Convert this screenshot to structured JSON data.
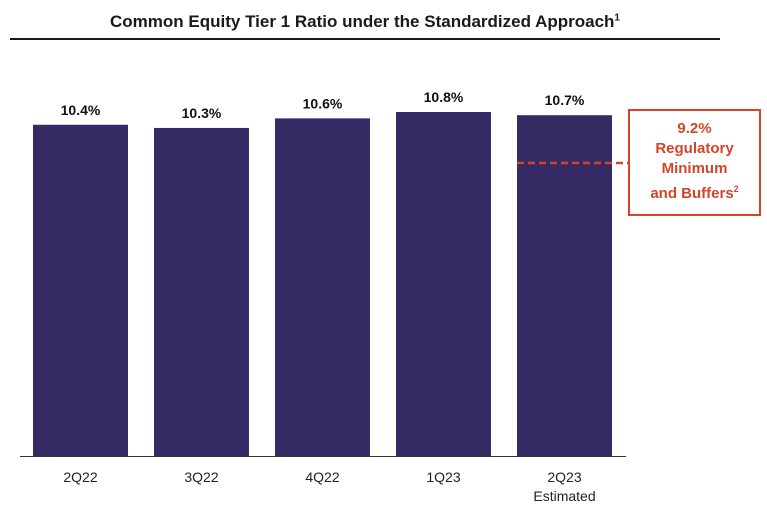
{
  "chart_data": {
    "type": "bar",
    "title": "Common Equity Tier 1 Ratio under the Standardized Approach",
    "title_footnote": "1",
    "categories": [
      {
        "label": "2Q22",
        "sublabel": ""
      },
      {
        "label": "3Q22",
        "sublabel": ""
      },
      {
        "label": "4Q22",
        "sublabel": ""
      },
      {
        "label": "1Q23",
        "sublabel": ""
      },
      {
        "label": "2Q23",
        "sublabel": "Estimated"
      }
    ],
    "values": [
      10.4,
      10.3,
      10.6,
      10.8,
      10.7
    ],
    "value_labels": [
      "10.4%",
      "10.3%",
      "10.6%",
      "10.8%",
      "10.7%"
    ],
    "bar_color": "#352a64",
    "reference_line": {
      "value": 9.2,
      "color": "#d4442a",
      "style": "dashed",
      "label_lines": [
        "9.2%",
        "Regulatory",
        "Minimum",
        "and Buffers"
      ],
      "footnote": "2"
    }
  }
}
